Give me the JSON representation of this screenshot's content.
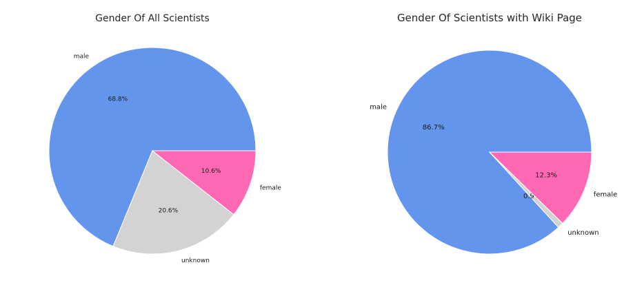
{
  "chart_data": [
    {
      "type": "pie",
      "title": "Gender Of All Scientists",
      "labels": [
        "male",
        "unknown",
        "female"
      ],
      "values": [
        68.8,
        20.6,
        10.6
      ],
      "value_labels": [
        "68.8%",
        "20.6%",
        "10.6%"
      ],
      "colors": [
        "#6495ED",
        "#D3D3D3",
        "#FF69B4"
      ],
      "start_angle": 0,
      "direction": "counterclockwise",
      "legend": "none"
    },
    {
      "type": "pie",
      "title": "Gender Of Scientists with Wiki Page",
      "labels": [
        "male",
        "unknown",
        "female"
      ],
      "values": [
        86.7,
        0.9,
        12.3
      ],
      "value_labels": [
        "86.7%",
        "0.9%",
        "12.3%"
      ],
      "colors": [
        "#6495ED",
        "#D3D3D3",
        "#FF69B4"
      ],
      "start_angle": 0,
      "direction": "counterclockwise",
      "legend": "none"
    }
  ]
}
